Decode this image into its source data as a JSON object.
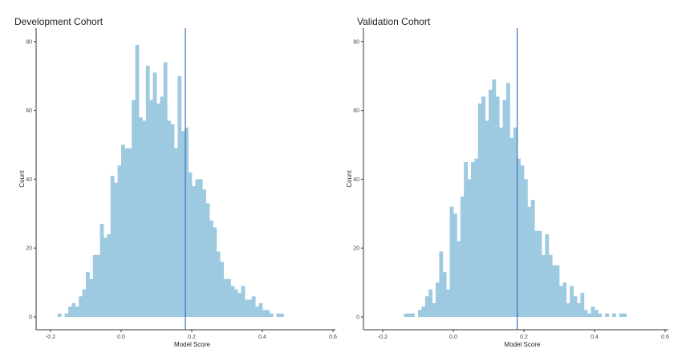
{
  "chart_data": [
    {
      "type": "histogram",
      "title": "Development Cohort",
      "xlabel": "Model Score",
      "ylabel": "Count",
      "xlim": [
        -0.25,
        0.65
      ],
      "ylim": [
        0,
        85
      ],
      "x_ticks": [
        -0.2,
        0.0,
        0.2,
        0.4,
        0.6
      ],
      "x_tick_labels": [
        "-0.2",
        "0.0",
        "0.2",
        "0.4",
        "0.6"
      ],
      "y_ticks": [
        0,
        20,
        40,
        60,
        80
      ],
      "y_tick_labels": [
        "0",
        "20",
        "40",
        "60",
        "80"
      ],
      "bin_start": -0.18,
      "bin_width": 0.01,
      "counts": [
        1,
        0,
        1,
        3,
        4,
        3,
        6,
        8,
        13,
        11,
        18,
        18,
        27,
        23,
        24,
        41,
        39,
        44,
        50,
        49,
        49,
        63,
        79,
        58,
        57,
        73,
        63,
        71,
        62,
        64,
        74,
        57,
        56,
        49,
        70,
        54,
        55,
        42,
        38,
        40,
        40,
        37,
        33,
        28,
        26,
        19,
        16,
        11,
        11,
        9,
        8,
        7,
        9,
        5,
        5,
        6,
        3,
        4,
        2,
        2,
        1,
        0,
        1,
        1
      ],
      "reference_line": 0.182,
      "colors": {
        "bars": "#9ecae1",
        "reference_line": "#3a6fb5"
      }
    },
    {
      "type": "histogram",
      "title": "Validation Cohort",
      "xlabel": "Model Score",
      "ylabel": "Count",
      "xlim": [
        -0.25,
        0.65
      ],
      "ylim": [
        0,
        85
      ],
      "x_ticks": [
        -0.2,
        0.0,
        0.2,
        0.4,
        0.6
      ],
      "x_tick_labels": [
        "-0.2",
        "0.0",
        "0.2",
        "0.4",
        "0.6"
      ],
      "y_ticks": [
        0,
        20,
        40,
        60,
        80
      ],
      "y_tick_labels": [
        "0",
        "20",
        "40",
        "60",
        "80"
      ],
      "bin_start": -0.14,
      "bin_width": 0.01,
      "counts": [
        1,
        1,
        1,
        0,
        2,
        3,
        6,
        8,
        4,
        10,
        19,
        13,
        8,
        32,
        30,
        22,
        35,
        45,
        40,
        45,
        46,
        62,
        64,
        57,
        66,
        69,
        64,
        55,
        63,
        68,
        52,
        55,
        46,
        44,
        40,
        32,
        34,
        25,
        25,
        18,
        24,
        18,
        15,
        15,
        9,
        10,
        4,
        9,
        6,
        4,
        7,
        2,
        1,
        3,
        2,
        1,
        0,
        1,
        0,
        1,
        0,
        1,
        1,
        0
      ],
      "reference_line": 0.181,
      "colors": {
        "bars": "#9ecae1",
        "reference_line": "#3a6fb5"
      }
    }
  ]
}
